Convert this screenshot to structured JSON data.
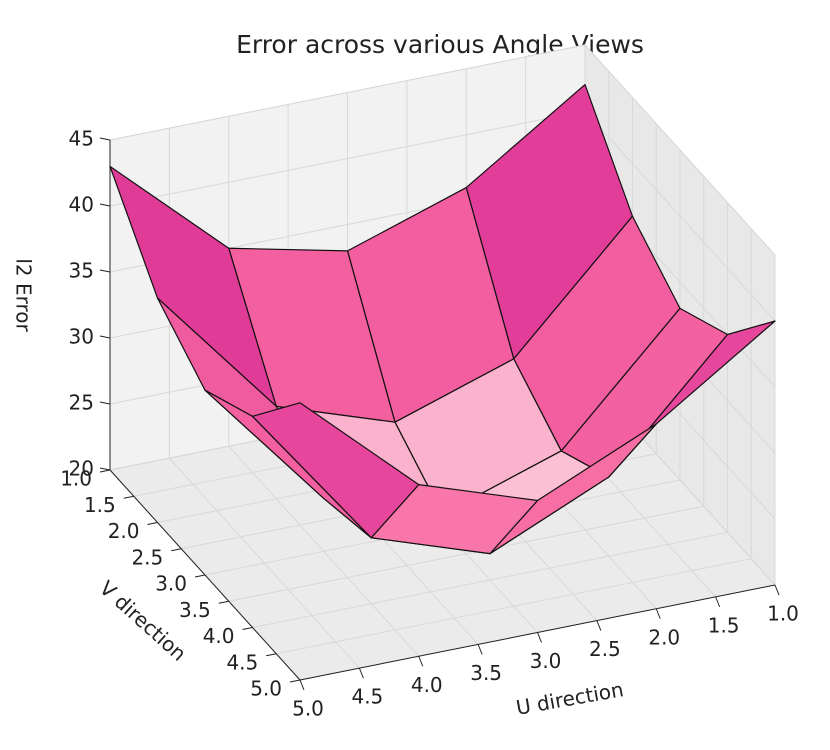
{
  "chart_data": {
    "type": "surface",
    "title": "Error across various Angle Views",
    "xlabel": "U direction",
    "ylabel": "V direction",
    "zlabel": "l2 Error",
    "x": [
      1,
      2,
      3,
      4,
      5
    ],
    "y": [
      1,
      2,
      3,
      4,
      5
    ],
    "z": [
      [
        42,
        36,
        33,
        35,
        43
      ],
      [
        36,
        27,
        24,
        27,
        37
      ],
      [
        33,
        24,
        21,
        24,
        34
      ],
      [
        35,
        26,
        22,
        25,
        36
      ],
      [
        40,
        34,
        30,
        33,
        41
      ]
    ],
    "xlim": [
      1,
      5
    ],
    "ylim": [
      1,
      5
    ],
    "zlim": [
      20,
      45
    ],
    "xticks": [
      {
        "value": 1,
        "label": "1.0"
      },
      {
        "value": 1.5,
        "label": "1.5"
      },
      {
        "value": 2,
        "label": "2.0"
      },
      {
        "value": 2.5,
        "label": "2.5"
      },
      {
        "value": 3,
        "label": "3.0"
      },
      {
        "value": 3.5,
        "label": "3.5"
      },
      {
        "value": 4,
        "label": "4.0"
      },
      {
        "value": 4.5,
        "label": "4.5"
      },
      {
        "value": 5,
        "label": "5.0"
      }
    ],
    "yticks": [
      {
        "value": 1,
        "label": "1.0"
      },
      {
        "value": 1.5,
        "label": "1.5"
      },
      {
        "value": 2,
        "label": "2.0"
      },
      {
        "value": 2.5,
        "label": "2.5"
      },
      {
        "value": 3,
        "label": "3.0"
      },
      {
        "value": 3.5,
        "label": "3.5"
      },
      {
        "value": 4,
        "label": "4.0"
      },
      {
        "value": 4.5,
        "label": "4.5"
      },
      {
        "value": 5,
        "label": "5.0"
      }
    ],
    "zticks": [
      20,
      25,
      30,
      35,
      40,
      45
    ],
    "colormap": [
      "#fff7f3",
      "#f768a1",
      "#dd3497",
      "#49006a"
    ],
    "grid": true
  }
}
